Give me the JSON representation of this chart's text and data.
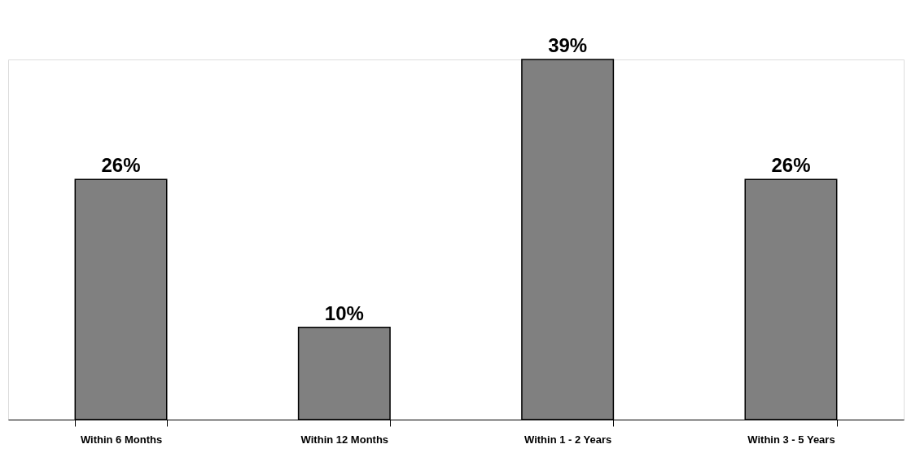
{
  "chart_data": {
    "type": "bar",
    "categories": [
      "Within 6 Months",
      "Within 12 Months",
      "Within 1 - 2 Years",
      "Within 3 - 5 Years"
    ],
    "values": [
      26,
      10,
      39,
      26
    ],
    "value_labels": [
      "26%",
      "10%",
      "39%",
      "26%"
    ],
    "color": "#808080",
    "grid": false
  }
}
